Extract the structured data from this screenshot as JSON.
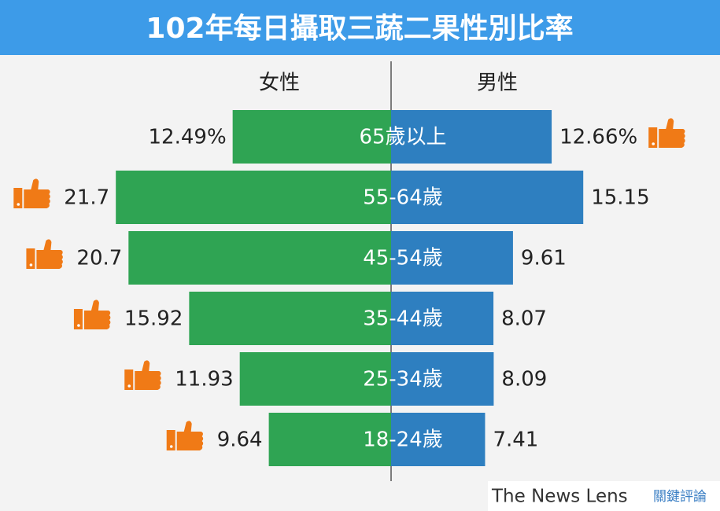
{
  "chart_data": {
    "type": "bar",
    "title": "102年每日攝取三蔬二果性別比率",
    "categories": [
      "65歲以上",
      "55-64歲",
      "45-54歲",
      "35-44歲",
      "25-34歲",
      "18-24歲"
    ],
    "series": [
      {
        "name": "女性",
        "color": "#2fa453",
        "values": [
          12.49,
          21.7,
          20.7,
          15.92,
          11.93,
          9.64
        ],
        "value_labels": [
          "12.49%",
          "21.7",
          "20.7",
          "15.92",
          "11.93",
          "9.64"
        ]
      },
      {
        "name": "男性",
        "color": "#2e7fc0",
        "values": [
          12.66,
          15.15,
          9.61,
          8.07,
          8.09,
          7.41
        ],
        "value_labels": [
          "12.66%",
          "15.15",
          "9.61",
          "8.07",
          "8.09",
          "7.41"
        ]
      }
    ],
    "source_name": "The News Lens",
    "source_name_zh": "關鍵評論"
  }
}
